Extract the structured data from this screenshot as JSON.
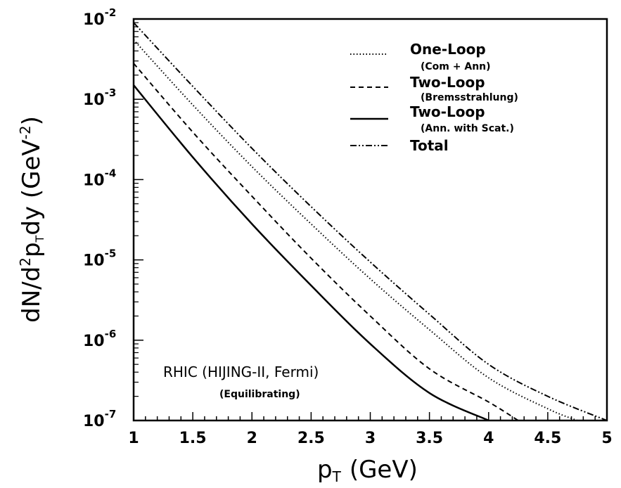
{
  "chart_data": {
    "type": "line",
    "ylabel": "dN/d²p_Tdy (GeV⁻²)",
    "ylabel_parts": {
      "main": "dN/d",
      "sup1": "2",
      "mid": "p",
      "sub": "T",
      "tail": "dy (GeV",
      "sup2": "-2",
      "end": ")"
    },
    "xlabel": "p_T (GeV)",
    "xlabel_parts": {
      "main": "p",
      "sub": "T",
      "tail": "(GeV)"
    },
    "xlim": [
      1,
      5
    ],
    "ylim": [
      1e-07,
      0.01
    ],
    "yscale": "log",
    "grid": false,
    "legend_position": "top-right",
    "x_ticks": [
      "1",
      "1.5",
      "2",
      "2.5",
      "3",
      "3.5",
      "4",
      "4.5",
      "5"
    ],
    "y_ticks": [
      {
        "base": "10",
        "exp": "-2"
      },
      {
        "base": "10",
        "exp": "-3"
      },
      {
        "base": "10",
        "exp": "-4"
      },
      {
        "base": "10",
        "exp": "-5"
      },
      {
        "base": "10",
        "exp": "-6"
      },
      {
        "base": "10",
        "exp": "-7"
      }
    ],
    "series": [
      {
        "name": "One-Loop",
        "subtitle": "(Com + Ann)",
        "style": "dotted",
        "x": [
          1.0,
          1.5,
          2.0,
          2.5,
          3.0,
          3.5,
          4.0,
          4.5,
          4.75
        ],
        "y": [
          0.0055,
          0.00085,
          0.000145,
          2.8e-05,
          5.8e-06,
          1.35e-06,
          3.4e-07,
          1.4e-07,
          1e-07
        ]
      },
      {
        "name": "Two-Loop",
        "subtitle": "(Bremsstrahlung)",
        "style": "dashed",
        "x": [
          1.0,
          1.5,
          2.0,
          2.5,
          3.0,
          3.5,
          4.0,
          4.25
        ],
        "y": [
          0.0028,
          0.00039,
          6.2e-05,
          1.05e-05,
          2e-06,
          4.4e-07,
          1.7e-07,
          1e-07
        ]
      },
      {
        "name": "Two-Loop",
        "subtitle": "(Ann. with Scat.)",
        "style": "solid",
        "x": [
          1.0,
          1.5,
          2.0,
          2.5,
          3.0,
          3.5,
          4.0
        ],
        "y": [
          0.0015,
          0.00019,
          2.8e-05,
          4.8e-06,
          9e-07,
          2.2e-07,
          1e-07
        ]
      },
      {
        "name": "Total",
        "subtitle": "",
        "style": "dashdot",
        "x": [
          1.0,
          1.5,
          2.0,
          2.5,
          3.0,
          3.5,
          4.0,
          4.5,
          5.0
        ],
        "y": [
          0.009,
          0.00145,
          0.000245,
          4.6e-05,
          9.4e-06,
          2.1e-06,
          5e-07,
          2e-07,
          1e-07
        ]
      }
    ],
    "annotation": {
      "main": "RHIC (HIJING-II, Fermi)",
      "sub": "(Equilibrating)"
    }
  }
}
